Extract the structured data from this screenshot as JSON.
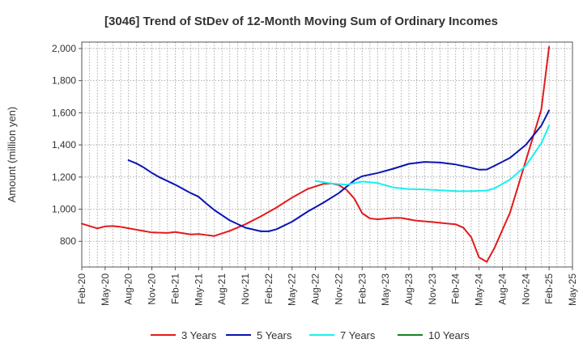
{
  "chart_data": {
    "type": "line",
    "title": "[3046]  Trend of StDev of 12-Month Moving Sum of Ordinary Incomes",
    "ylabel": "Amount (million yen)",
    "xlabel": "",
    "ylim": [
      640,
      2040
    ],
    "yticks": [
      800,
      1000,
      1200,
      1400,
      1600,
      1800,
      2000
    ],
    "ytick_labels": [
      "800",
      "1,000",
      "1,200",
      "1,400",
      "1,600",
      "1,800",
      "2,000"
    ],
    "xlim": [
      "2020-02",
      "2025-05"
    ],
    "xtick_labels": [
      "Feb-20",
      "May-20",
      "Aug-20",
      "Nov-20",
      "Feb-21",
      "May-21",
      "Aug-21",
      "Nov-21",
      "Feb-22",
      "May-22",
      "Aug-22",
      "Nov-22",
      "Feb-23",
      "May-23",
      "Aug-23",
      "Nov-23",
      "Feb-24",
      "May-24",
      "Aug-24",
      "Nov-24",
      "Feb-25",
      "May-25"
    ],
    "grid": true,
    "legend_position": "bottom",
    "series": [
      {
        "name": "3 Years",
        "color": "#e31a1c",
        "points": [
          [
            "2020-02",
            910
          ],
          [
            "2020-04",
            880
          ],
          [
            "2020-05",
            893
          ],
          [
            "2020-06",
            895
          ],
          [
            "2020-07",
            890
          ],
          [
            "2020-09",
            872
          ],
          [
            "2020-11",
            855
          ],
          [
            "2021-01",
            852
          ],
          [
            "2021-02",
            858
          ],
          [
            "2021-04",
            843
          ],
          [
            "2021-05",
            845
          ],
          [
            "2021-07",
            833
          ],
          [
            "2021-09",
            865
          ],
          [
            "2021-11",
            906
          ],
          [
            "2022-01",
            955
          ],
          [
            "2022-03",
            1010
          ],
          [
            "2022-05",
            1072
          ],
          [
            "2022-07",
            1126
          ],
          [
            "2022-09",
            1157
          ],
          [
            "2022-10",
            1160
          ],
          [
            "2022-11",
            1150
          ],
          [
            "2022-12",
            1120
          ],
          [
            "2023-01",
            1065
          ],
          [
            "2023-02",
            975
          ],
          [
            "2023-03",
            942
          ],
          [
            "2023-04",
            937
          ],
          [
            "2023-06",
            945
          ],
          [
            "2023-07",
            945
          ],
          [
            "2023-09",
            928
          ],
          [
            "2023-11",
            920
          ],
          [
            "2024-01",
            910
          ],
          [
            "2024-02",
            906
          ],
          [
            "2024-03",
            885
          ],
          [
            "2024-04",
            825
          ],
          [
            "2024-05",
            700
          ],
          [
            "2024-06",
            672
          ],
          [
            "2024-07",
            760
          ],
          [
            "2024-09",
            980
          ],
          [
            "2024-11",
            1300
          ],
          [
            "2025-01",
            1620
          ],
          [
            "2025-02",
            2010
          ]
        ]
      },
      {
        "name": "5 Years",
        "color": "#0a14b4",
        "points": [
          [
            "2020-08",
            1305
          ],
          [
            "2020-09",
            1285
          ],
          [
            "2020-10",
            1258
          ],
          [
            "2020-11",
            1225
          ],
          [
            "2020-12",
            1198
          ],
          [
            "2021-02",
            1152
          ],
          [
            "2021-04",
            1100
          ],
          [
            "2021-05",
            1077
          ],
          [
            "2021-06",
            1035
          ],
          [
            "2021-07",
            995
          ],
          [
            "2021-09",
            930
          ],
          [
            "2021-11",
            885
          ],
          [
            "2022-01",
            862
          ],
          [
            "2022-02",
            862
          ],
          [
            "2022-03",
            875
          ],
          [
            "2022-05",
            922
          ],
          [
            "2022-07",
            985
          ],
          [
            "2022-09",
            1040
          ],
          [
            "2022-11",
            1100
          ],
          [
            "2023-01",
            1180
          ],
          [
            "2023-02",
            1205
          ],
          [
            "2023-04",
            1225
          ],
          [
            "2023-06",
            1252
          ],
          [
            "2023-08",
            1282
          ],
          [
            "2023-10",
            1294
          ],
          [
            "2023-12",
            1290
          ],
          [
            "2024-02",
            1278
          ],
          [
            "2024-04",
            1258
          ],
          [
            "2024-05",
            1246
          ],
          [
            "2024-06",
            1247
          ],
          [
            "2024-07",
            1270
          ],
          [
            "2024-09",
            1320
          ],
          [
            "2024-11",
            1400
          ],
          [
            "2025-01",
            1520
          ],
          [
            "2025-02",
            1615
          ]
        ]
      },
      {
        "name": "7 Years",
        "color": "#19f0f0",
        "points": [
          [
            "2022-08",
            1176
          ],
          [
            "2022-10",
            1160
          ],
          [
            "2022-12",
            1152
          ],
          [
            "2023-02",
            1172
          ],
          [
            "2023-04",
            1162
          ],
          [
            "2023-06",
            1135
          ],
          [
            "2023-08",
            1125
          ],
          [
            "2023-10",
            1123
          ],
          [
            "2023-12",
            1118
          ],
          [
            "2024-02",
            1112
          ],
          [
            "2024-04",
            1112
          ],
          [
            "2024-06",
            1116
          ],
          [
            "2024-07",
            1130
          ],
          [
            "2024-09",
            1185
          ],
          [
            "2024-11",
            1270
          ],
          [
            "2025-01",
            1410
          ],
          [
            "2025-02",
            1520
          ]
        ]
      },
      {
        "name": "10 Years",
        "color": "#14821e",
        "points": []
      }
    ]
  }
}
